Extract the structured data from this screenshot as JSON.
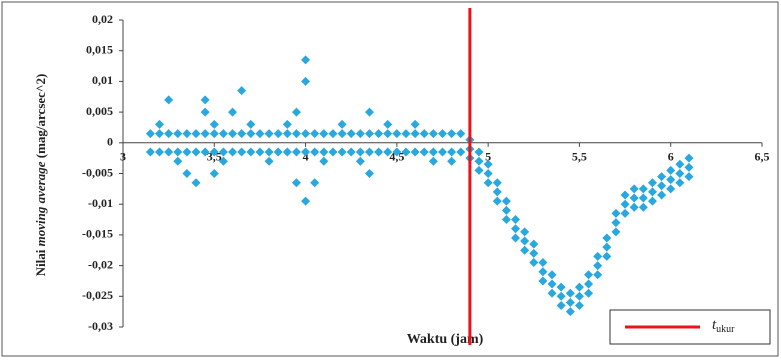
{
  "chart_data": {
    "type": "scatter",
    "xlabel": "Waktu (jam)",
    "ylabel_parts": [
      "Nilai ",
      "moving average",
      " (mag/arcsec^2)"
    ],
    "color": "#29a8e0",
    "xlim": [
      3,
      6.5
    ],
    "xticks": [
      3,
      {
        "value": 3.5,
        "label": "3,5"
      },
      4,
      {
        "value": 4.5,
        "label": "4,5"
      },
      5,
      {
        "value": 5.5,
        "label": "5,5"
      },
      6,
      {
        "value": 6.5,
        "label": "6,5"
      }
    ],
    "ylim": [
      -0.03,
      0.02
    ],
    "yticks": [
      {
        "value": 0.02,
        "label": "0,02"
      },
      {
        "value": 0.015,
        "label": "0,015"
      },
      {
        "value": 0.01,
        "label": "0,01"
      },
      {
        "value": 0.005,
        "label": "0,005"
      },
      0,
      {
        "value": -0.005,
        "label": "-0,005"
      },
      {
        "value": -0.01,
        "label": "-0,01"
      },
      {
        "value": -0.015,
        "label": "-0,015"
      },
      {
        "value": -0.02,
        "label": "-0,02"
      },
      {
        "value": -0.025,
        "label": "-0,025"
      },
      {
        "value": -0.03,
        "label": "-0,03"
      }
    ],
    "reference_line": {
      "x": 4.9,
      "color": "#e8141c",
      "name": "t",
      "name_sub": "ukur"
    },
    "x": [
      3.15,
      3.15,
      3.2,
      3.2,
      3.25,
      3.25,
      3.3,
      3.3,
      3.35,
      3.35,
      3.4,
      3.4,
      3.45,
      3.45,
      3.5,
      3.5,
      3.55,
      3.55,
      3.6,
      3.6,
      3.65,
      3.65,
      3.7,
      3.7,
      3.75,
      3.75,
      3.8,
      3.8,
      3.85,
      3.85,
      3.9,
      3.9,
      3.95,
      3.95,
      4,
      4,
      4.05,
      4.05,
      4.1,
      4.1,
      4.15,
      4.15,
      4.2,
      4.2,
      4.25,
      4.25,
      4.3,
      4.3,
      4.35,
      4.35,
      4.4,
      4.4,
      4.45,
      4.45,
      4.5,
      4.5,
      4.55,
      4.55,
      4.6,
      4.6,
      4.65,
      4.65,
      4.7,
      4.7,
      4.75,
      4.75,
      4.8,
      4.8,
      4.85,
      4.85,
      3.2,
      3.3,
      3.45,
      3.5,
      3.55,
      3.6,
      3.7,
      3.8,
      3.9,
      4.1,
      4.2,
      4.3,
      4.45,
      4.6,
      4.7,
      4.8,
      3.25,
      3.45,
      3.65,
      3.95,
      4,
      4,
      4,
      3.95,
      4.05,
      3.4,
      3.5,
      4.35,
      4.35,
      3.35,
      4.9,
      4.9,
      4.9,
      4.95,
      4.95,
      4.95,
      5,
      5,
      5,
      5.05,
      5.05,
      5.05,
      5.1,
      5.1,
      5.1,
      5.15,
      5.15,
      5.15,
      5.2,
      5.2,
      5.2,
      5.25,
      5.25,
      5.25,
      5.3,
      5.3,
      5.3,
      5.35,
      5.35,
      5.35,
      5.4,
      5.4,
      5.4,
      5.45,
      5.45,
      5.45,
      5.5,
      5.5,
      5.5,
      5.55,
      5.55,
      5.55,
      5.6,
      5.6,
      5.6,
      5.65,
      5.65,
      5.65,
      5.7,
      5.7,
      5.7,
      5.75,
      5.75,
      5.75,
      5.8,
      5.8,
      5.8,
      5.85,
      5.85,
      5.85,
      5.9,
      5.9,
      5.9,
      5.95,
      5.95,
      5.95,
      6,
      6,
      6,
      6.05,
      6.05,
      6.05,
      6.1,
      6.1,
      6.1
    ],
    "values": [
      0.0015,
      -0.0015,
      0.0015,
      -0.0015,
      0.0015,
      -0.0015,
      0.0015,
      -0.0015,
      0.0015,
      -0.0015,
      0.0015,
      -0.0015,
      0.0015,
      -0.0015,
      0.0015,
      -0.0015,
      0.0015,
      -0.0015,
      0.0015,
      -0.0015,
      0.0015,
      -0.0015,
      0.0015,
      -0.0015,
      0.0015,
      -0.0015,
      0.0015,
      -0.0015,
      0.0015,
      -0.0015,
      0.0015,
      -0.0015,
      0.0015,
      -0.0015,
      0.0015,
      -0.0015,
      0.0015,
      -0.0015,
      0.0015,
      -0.0015,
      0.0015,
      -0.0015,
      0.0015,
      -0.0015,
      0.0015,
      -0.0015,
      0.0015,
      -0.0015,
      0.0015,
      -0.0015,
      0.0015,
      -0.0015,
      0.0015,
      -0.0015,
      0.0015,
      -0.0015,
      0.0015,
      -0.0015,
      0.0015,
      -0.0015,
      0.0015,
      -0.0015,
      0.0015,
      -0.0015,
      0.0015,
      -0.0015,
      0.0015,
      -0.0015,
      0.0015,
      -0.0015,
      0.003,
      -0.003,
      0.005,
      0.003,
      -0.003,
      0.005,
      0.003,
      -0.003,
      0.003,
      -0.003,
      0.003,
      -0.003,
      0.003,
      0.003,
      -0.003,
      -0.003,
      0.007,
      0.007,
      0.0085,
      0.005,
      0.0135,
      0.01,
      -0.0095,
      -0.0065,
      -0.0065,
      -0.0065,
      -0.005,
      0.005,
      -0.005,
      -0.005,
      0.0005,
      -0.001,
      -0.0025,
      -0.0015,
      -0.003,
      -0.0045,
      -0.0035,
      -0.005,
      -0.0065,
      -0.0065,
      -0.008,
      -0.0095,
      -0.0095,
      -0.011,
      -0.0125,
      -0.0125,
      -0.014,
      -0.0155,
      -0.0145,
      -0.016,
      -0.0175,
      -0.0165,
      -0.018,
      -0.0195,
      -0.0195,
      -0.021,
      -0.0225,
      -0.0215,
      -0.023,
      -0.0245,
      -0.0235,
      -0.025,
      -0.0265,
      -0.0245,
      -0.026,
      -0.0275,
      -0.0235,
      -0.025,
      -0.0265,
      -0.0215,
      -0.023,
      -0.0245,
      -0.0185,
      -0.02,
      -0.0215,
      -0.0155,
      -0.017,
      -0.0185,
      -0.0115,
      -0.013,
      -0.0145,
      -0.0085,
      -0.01,
      -0.0115,
      -0.0075,
      -0.009,
      -0.0105,
      -0.0075,
      -0.009,
      -0.0105,
      -0.0065,
      -0.008,
      -0.0095,
      -0.0055,
      -0.007,
      -0.0085,
      -0.0045,
      -0.006,
      -0.0075,
      -0.0035,
      -0.005,
      -0.0065,
      -0.0025,
      -0.004,
      -0.0055
    ]
  }
}
